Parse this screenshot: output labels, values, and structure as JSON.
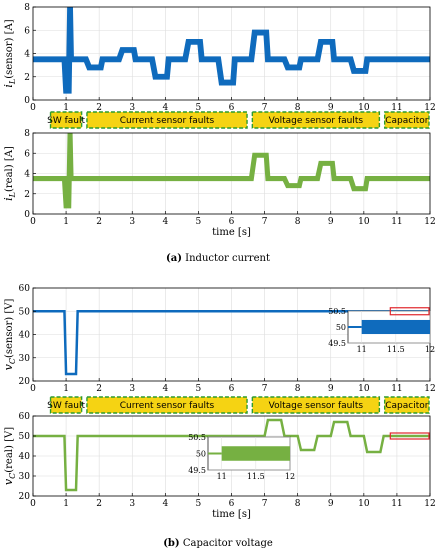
{
  "colors": {
    "blue": "#0f6bbd",
    "green": "#76b042",
    "segment_fill": "#f5d313",
    "segment_border": "#2e9b2e",
    "marker": "#e0262b",
    "grid": "#dddddd"
  },
  "captions": {
    "a_bold": "(a)",
    "a_text": " Inductor current",
    "b_bold": "(b)",
    "b_text": " Capacitor voltage"
  },
  "segments": [
    {
      "label": "SW fault",
      "from": 0.5,
      "to": 1.5
    },
    {
      "label": "Current sensor faults",
      "from": 1.6,
      "to": 6.5
    },
    {
      "label": "Voltage sensor faults",
      "from": 6.6,
      "to": 10.5
    },
    {
      "label": "Capacitor",
      "from": 10.6,
      "to": 12
    }
  ],
  "chart_data": [
    {
      "id": "iL_sensor",
      "type": "line",
      "series_color": "blue",
      "ylabel_main": "i",
      "ylabel_sub": "L",
      "ylabel_rest": "(sensor) [A]",
      "xlim": [
        0,
        12
      ],
      "ylim": [
        0,
        8
      ],
      "yticks": [
        0,
        2,
        4,
        6,
        8
      ],
      "xticks": [
        0,
        1,
        2,
        3,
        4,
        5,
        6,
        7,
        8,
        9,
        10,
        11,
        12
      ],
      "xlabel": "",
      "grid": true,
      "x": [
        0,
        0.95,
        1.0,
        1.02,
        1.08,
        1.12,
        1.15,
        1.6,
        1.7,
        2.05,
        2.1,
        2.6,
        2.7,
        3.05,
        3.1,
        3.6,
        3.7,
        4.05,
        4.1,
        4.6,
        4.7,
        5.05,
        5.1,
        5.6,
        5.7,
        6.05,
        6.1,
        6.6,
        6.7,
        7.05,
        7.1,
        7.6,
        7.7,
        8.05,
        8.1,
        8.6,
        8.7,
        9.05,
        9.1,
        9.6,
        9.7,
        10.05,
        10.1,
        10.6,
        10.7,
        12
      ],
      "y": [
        3.5,
        3.5,
        0.8,
        0.8,
        0.8,
        8,
        3.5,
        3.5,
        2.8,
        2.8,
        3.5,
        3.5,
        4.3,
        4.3,
        3.5,
        3.5,
        2.0,
        2.0,
        3.5,
        3.5,
        5.0,
        5.0,
        3.5,
        3.5,
        1.5,
        1.5,
        3.5,
        3.5,
        5.8,
        5.8,
        3.5,
        3.5,
        2.8,
        2.8,
        3.5,
        3.5,
        5.0,
        5.0,
        3.5,
        3.5,
        2.5,
        2.5,
        3.5,
        3.5,
        3.5,
        3.5
      ],
      "band": 0.25
    },
    {
      "id": "iL_real",
      "type": "line",
      "series_color": "green",
      "ylabel_main": "i",
      "ylabel_sub": "L",
      "ylabel_rest": "(real) [A]",
      "xlim": [
        0,
        12
      ],
      "ylim": [
        0,
        8
      ],
      "yticks": [
        0,
        2,
        4,
        6,
        8
      ],
      "xticks": [
        0,
        1,
        2,
        3,
        4,
        5,
        6,
        7,
        8,
        9,
        10,
        11,
        12
      ],
      "xlabel": "time [s]",
      "grid": true,
      "x": [
        0,
        0.95,
        1.0,
        1.02,
        1.08,
        1.12,
        1.15,
        6.6,
        6.7,
        7.05,
        7.1,
        7.6,
        7.7,
        8.05,
        8.1,
        8.6,
        8.7,
        9.05,
        9.1,
        9.6,
        9.7,
        10.05,
        10.1,
        12
      ],
      "y": [
        3.5,
        3.5,
        0.8,
        0.8,
        0.8,
        8,
        3.5,
        3.5,
        5.8,
        5.8,
        3.5,
        3.5,
        2.8,
        2.8,
        3.5,
        3.5,
        5.0,
        5.0,
        3.5,
        3.5,
        2.5,
        2.5,
        3.5,
        3.5
      ],
      "band": 0.25
    },
    {
      "id": "vC_sensor",
      "type": "line",
      "series_color": "blue",
      "ylabel_main": "v",
      "ylabel_sub": "C",
      "ylabel_rest": "(sensor) [V]",
      "xlim": [
        0,
        12
      ],
      "ylim": [
        20,
        60
      ],
      "yticks": [
        20,
        30,
        40,
        50,
        60
      ],
      "xticks": [
        0,
        1,
        2,
        3,
        4,
        5,
        6,
        7,
        8,
        9,
        10,
        11,
        12
      ],
      "xlabel": "",
      "grid": true,
      "x": [
        0,
        0.95,
        1.0,
        1.3,
        1.35,
        12
      ],
      "y": [
        50,
        50,
        23,
        23,
        50,
        50
      ],
      "band": 0.3,
      "inset": {
        "xlim": [
          10.8,
          12
        ],
        "ylim": [
          49.5,
          50.5
        ],
        "xticks": [
          11,
          11.5,
          12
        ],
        "yticks": [
          49.5,
          50,
          50.5
        ],
        "hi": 50.22,
        "lo": 49.78
      }
    },
    {
      "id": "vC_real",
      "type": "line",
      "series_color": "green",
      "ylabel_main": "v",
      "ylabel_sub": "C",
      "ylabel_rest": "(real) [V]",
      "xlim": [
        0,
        12
      ],
      "ylim": [
        20,
        60
      ],
      "yticks": [
        20,
        30,
        40,
        50,
        60
      ],
      "xticks": [
        0,
        1,
        2,
        3,
        4,
        5,
        6,
        7,
        8,
        9,
        10,
        11,
        12
      ],
      "xlabel": "time [s]",
      "grid": true,
      "x": [
        0,
        0.95,
        1.0,
        1.3,
        1.35,
        7.0,
        7.1,
        7.5,
        7.6,
        8.0,
        8.1,
        8.5,
        8.6,
        9.0,
        9.1,
        9.5,
        9.6,
        10.0,
        10.1,
        10.5,
        10.6,
        12
      ],
      "y": [
        50,
        50,
        23,
        23,
        50,
        50,
        58,
        58,
        50,
        50,
        43,
        43,
        50,
        50,
        57,
        57,
        50,
        50,
        42,
        42,
        50,
        50
      ],
      "band": 0.3,
      "inset": {
        "xlim": [
          10.8,
          12
        ],
        "ylim": [
          49.5,
          50.5
        ],
        "xticks": [
          11,
          11.5,
          12
        ],
        "yticks": [
          49.5,
          50,
          50.5
        ],
        "hi": 50.22,
        "lo": 49.78
      }
    }
  ]
}
